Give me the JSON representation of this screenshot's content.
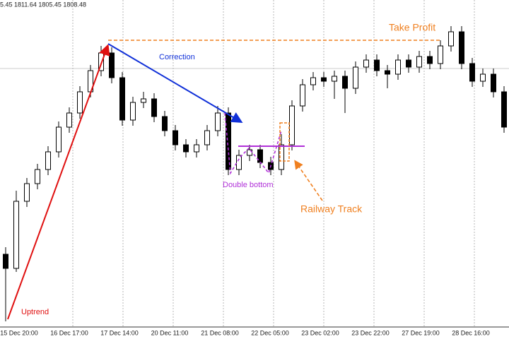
{
  "chart_data": {
    "type": "candlestick",
    "header": "5.45 1811.64 1805.45 1808.48",
    "annotations": {
      "take_profit": "Take Profit",
      "correction": "Correction",
      "double_bottom": "Double bottom",
      "railway_track": "Railway Track",
      "uptrend": "Uptrend"
    },
    "x_tick_labels": [
      "15 Dec 20:00",
      "16 Dec 17:00",
      "17 Dec 14:00",
      "20 Dec 11:00",
      "21 Dec 08:00",
      "22 Dec 05:00",
      "23 Dec 02:00",
      "23 Dec 22:00",
      "27 Dec 19:00",
      "28 Dec 16:00"
    ],
    "open": [
      1818,
      1814,
      1833,
      1838,
      1842,
      1847,
      1854,
      1858,
      1864,
      1870,
      1875,
      1868,
      1856,
      1861,
      1862,
      1857,
      1853,
      1849,
      1847,
      1849,
      1853,
      1858,
      1842,
      1846,
      1847.6,
      1844,
      1842,
      1849,
      1860,
      1866,
      1868,
      1867,
      1868.4,
      1865,
      1871,
      1873,
      1870,
      1869,
      1873,
      1871,
      1874,
      1872,
      1877,
      1881,
      1872,
      1867,
      1869,
      1864
    ],
    "high": [
      1820,
      1836,
      1839.6,
      1843.6,
      1848.6,
      1855.6,
      1859.6,
      1865.6,
      1871.6,
      1877,
      1876.6,
      1869.6,
      1862.6,
      1864,
      1863.6,
      1858.6,
      1854.6,
      1850.6,
      1850.6,
      1854.6,
      1860,
      1859.6,
      1847.6,
      1849,
      1849,
      1845.6,
      1852,
      1861.6,
      1867.6,
      1869.6,
      1869.6,
      1870,
      1870,
      1872.6,
      1874.6,
      1874.6,
      1871.6,
      1874.6,
      1874.6,
      1875.6,
      1875.6,
      1878.6,
      1882.6,
      1882.6,
      1873.6,
      1870.6,
      1870.6,
      1865.6
    ],
    "low": [
      1799,
      1813,
      1831.4,
      1836.4,
      1840.4,
      1845.4,
      1852.4,
      1856.4,
      1862.4,
      1868.4,
      1866.4,
      1854.4,
      1854.4,
      1859.4,
      1855.4,
      1851.4,
      1847.4,
      1845.4,
      1845.4,
      1847.4,
      1851.4,
      1840.4,
      1840.4,
      1844.4,
      1842.4,
      1840.4,
      1840.4,
      1847.4,
      1858.4,
      1864.4,
      1865.4,
      1862,
      1858,
      1863.4,
      1869.4,
      1868.4,
      1865,
      1867.4,
      1869.4,
      1869.4,
      1870.4,
      1870.4,
      1875.4,
      1870.4,
      1865.4,
      1865.4,
      1862.4,
      1852.4
    ],
    "close": [
      1814,
      1833,
      1838,
      1842,
      1847,
      1854,
      1858,
      1864,
      1870,
      1875,
      1868,
      1856,
      1861,
      1862,
      1857,
      1853,
      1849,
      1847,
      1849,
      1853,
      1858,
      1842,
      1846,
      1847.6,
      1844,
      1842,
      1849,
      1860,
      1866,
      1868,
      1867,
      1868.4,
      1865,
      1871,
      1873,
      1870,
      1869,
      1873,
      1871,
      1874,
      1872,
      1877,
      1881,
      1872,
      1867,
      1869,
      1864,
      1854
    ],
    "ylim": [
      1798,
      1890
    ]
  }
}
